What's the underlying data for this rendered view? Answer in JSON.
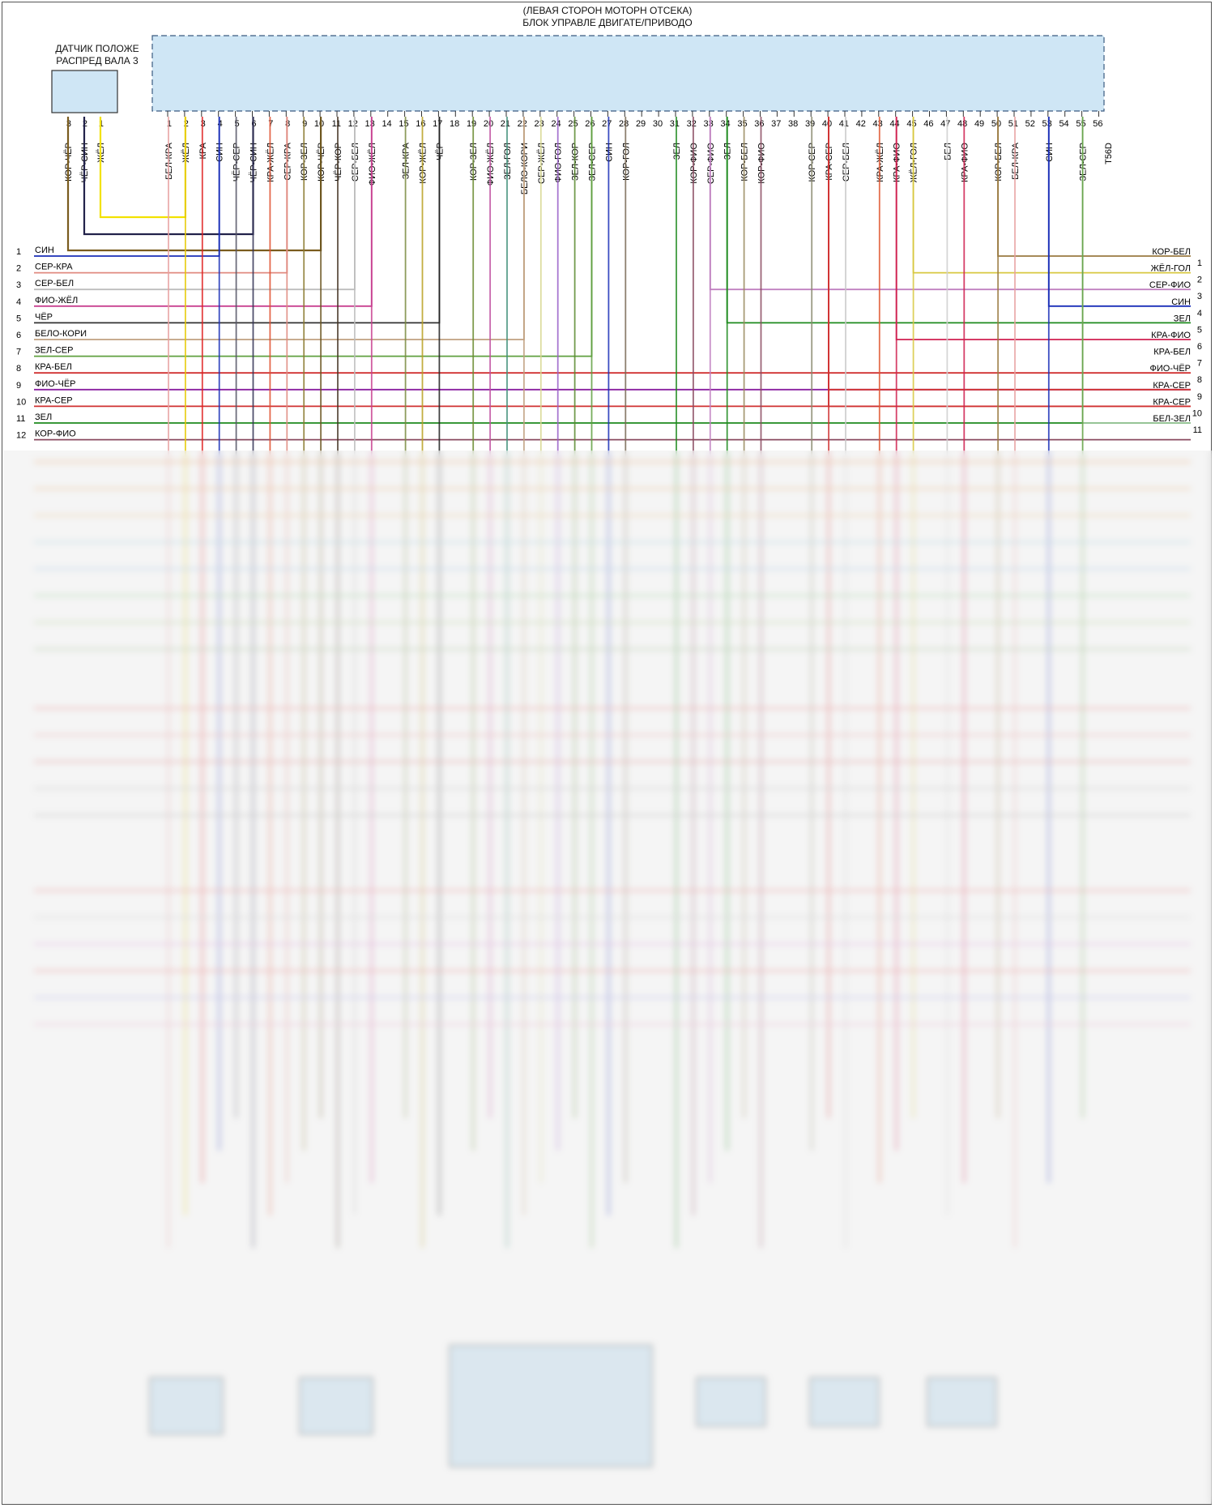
{
  "header": {
    "location": "(ЛЕВАЯ СТОРОН МОТОРН ОТСЕКА)",
    "unit": "БЛОК УПРАВЛЕ ДВИГАТЕ/ПРИВОДО"
  },
  "sensor": {
    "title_line1": "ДАТЧИК ПОЛОЖЕ",
    "title_line2": "РАСПРЕД ВАЛА 3",
    "pins": [
      {
        "num": "3",
        "wire": "КОР-ЧЁР",
        "color": "#7a5c1e"
      },
      {
        "num": "2",
        "wire": "ЧЁР-СИН",
        "color": "#22224a"
      },
      {
        "num": "1",
        "wire": "ЖЁЛ",
        "color": "#f2e200"
      }
    ]
  },
  "connector": {
    "code": "T56D",
    "pins": [
      {
        "num": "1",
        "wire": "БЕЛ-КРА",
        "color": "#e8a0a0"
      },
      {
        "num": "2",
        "wire": "ЖЁЛ",
        "color": "#e6c800"
      },
      {
        "num": "3",
        "wire": "КРА",
        "color": "#e02020"
      },
      {
        "num": "4",
        "wire": "СИН",
        "color": "#1a2fb8"
      },
      {
        "num": "5",
        "wire": "ЧЁР-СЕР",
        "color": "#555566"
      },
      {
        "num": "6",
        "wire": "ЧЁР-СИН",
        "color": "#333355"
      },
      {
        "num": "7",
        "wire": "КРА-ЖЁЛ",
        "color": "#e05030"
      },
      {
        "num": "8",
        "wire": "СЕР-КРА",
        "color": "#e08a80"
      },
      {
        "num": "9",
        "wire": "КОР-ЗЕЛ",
        "color": "#8a7a30"
      },
      {
        "num": "10",
        "wire": "КОР-ЧЁР",
        "color": "#6a5520"
      },
      {
        "num": "11",
        "wire": "ЧЁР-КОР",
        "color": "#443322"
      },
      {
        "num": "12",
        "wire": "СЕР-БЕЛ",
        "color": "#bdbdbd"
      },
      {
        "num": "13",
        "wire": "ФИО-ЖЁЛ",
        "color": "#c84090"
      },
      {
        "num": "14",
        "wire": "",
        "color": ""
      },
      {
        "num": "15",
        "wire": "ЗЕЛ-КРА",
        "color": "#7a8a40"
      },
      {
        "num": "16",
        "wire": "КОР-ЖЁЛ",
        "color": "#b8a020"
      },
      {
        "num": "17",
        "wire": "ЧЁР",
        "color": "#222222"
      },
      {
        "num": "18",
        "wire": "",
        "color": ""
      },
      {
        "num": "19",
        "wire": "КОР-ЗЕЛ",
        "color": "#6a8a30"
      },
      {
        "num": "20",
        "wire": "ФИО-ЖЁЛ",
        "color": "#c050a0"
      },
      {
        "num": "21",
        "wire": "ЗЕЛ-ГОЛ",
        "color": "#40907a"
      },
      {
        "num": "22",
        "wire": "БЕЛО-КОРИ",
        "color": "#c0a080"
      },
      {
        "num": "23",
        "wire": "СЕР-ЖЁЛ",
        "color": "#d8d890"
      },
      {
        "num": "24",
        "wire": "ФИО-ГОЛ",
        "color": "#9a60c8"
      },
      {
        "num": "25",
        "wire": "ЗЕЛ-КОР",
        "color": "#5a8a30"
      },
      {
        "num": "26",
        "wire": "ЗЕЛ-СЕР",
        "color": "#60a040"
      },
      {
        "num": "27",
        "wire": "СИН",
        "color": "#1a2fb8"
      },
      {
        "num": "28",
        "wire": "КОР-ГОЛ",
        "color": "#7a6a55"
      },
      {
        "num": "29",
        "wire": "",
        "color": ""
      },
      {
        "num": "30",
        "wire": "",
        "color": ""
      },
      {
        "num": "31",
        "wire": "ЗЕЛ",
        "color": "#1e8a1e"
      },
      {
        "num": "32",
        "wire": "КОР-ФИО",
        "color": "#8a4a60"
      },
      {
        "num": "33",
        "wire": "СЕР-ФИО",
        "color": "#c080c0"
      },
      {
        "num": "34",
        "wire": "ЗЕЛ",
        "color": "#1e8a1e"
      },
      {
        "num": "35",
        "wire": "КОР-БЕЛ",
        "color": "#9a8a60"
      },
      {
        "num": "36",
        "wire": "КОР-ФИО",
        "color": "#8a4a60"
      },
      {
        "num": "37",
        "wire": "",
        "color": ""
      },
      {
        "num": "38",
        "wire": "",
        "color": ""
      },
      {
        "num": "39",
        "wire": "КОР-СЕР",
        "color": "#8a8a70"
      },
      {
        "num": "40",
        "wire": "КРА-СЕР",
        "color": "#d03030"
      },
      {
        "num": "41",
        "wire": "СЕР-БЕЛ",
        "color": "#c8c8c8"
      },
      {
        "num": "42",
        "wire": "",
        "color": ""
      },
      {
        "num": "43",
        "wire": "КРА-ЖЁЛ",
        "color": "#e05530"
      },
      {
        "num": "44",
        "wire": "КРА-ФИО",
        "color": "#d02050"
      },
      {
        "num": "45",
        "wire": "ЖЁЛ-ГОЛ",
        "color": "#d8c840"
      },
      {
        "num": "46",
        "wire": "",
        "color": ""
      },
      {
        "num": "47",
        "wire": "БЕЛ",
        "color": "#d0d0d0"
      },
      {
        "num": "48",
        "wire": "КРА-ФИО",
        "color": "#d02050"
      },
      {
        "num": "49",
        "wire": "",
        "color": ""
      },
      {
        "num": "50",
        "wire": "КОР-БЕЛ",
        "color": "#9a7a40"
      },
      {
        "num": "51",
        "wire": "БЕЛ-КРА",
        "color": "#e8a0a0"
      },
      {
        "num": "52",
        "wire": "",
        "color": ""
      },
      {
        "num": "53",
        "wire": "СИН",
        "color": "#1a2fb8"
      },
      {
        "num": "54",
        "wire": "",
        "color": ""
      },
      {
        "num": "55",
        "wire": "ЗЕЛ-СЕР",
        "color": "#60a040"
      },
      {
        "num": "56",
        "wire": "",
        "color": ""
      }
    ]
  },
  "left_bus": [
    {
      "num": "1",
      "wire": "СИН",
      "color": "#1a2fb8"
    },
    {
      "num": "2",
      "wire": "СЕР-КРА",
      "color": "#e08a80"
    },
    {
      "num": "3",
      "wire": "СЕР-БЕЛ",
      "color": "#bdbdbd"
    },
    {
      "num": "4",
      "wire": "ФИО-ЖЁЛ",
      "color": "#c84090"
    },
    {
      "num": "5",
      "wire": "ЧЁР",
      "color": "#333333"
    },
    {
      "num": "6",
      "wire": "БЕЛО-КОРИ",
      "color": "#c0a080"
    },
    {
      "num": "7",
      "wire": "ЗЕЛ-СЕР",
      "color": "#60a040"
    },
    {
      "num": "8",
      "wire": "КРА-БЕЛ",
      "color": "#d03030"
    },
    {
      "num": "9",
      "wire": "ФИО-ЧЁР",
      "color": "#8a20a0"
    },
    {
      "num": "10",
      "wire": "КРА-СЕР",
      "color": "#d03030"
    },
    {
      "num": "11",
      "wire": "ЗЕЛ",
      "color": "#1e8a1e"
    },
    {
      "num": "12",
      "wire": "КОР-ФИО",
      "color": "#8a4a60"
    }
  ],
  "right_bus": [
    {
      "num": "1",
      "wire": "КОР-БЕЛ",
      "color": "#9a7a40"
    },
    {
      "num": "2",
      "wire": "ЖЁЛ-ГОЛ",
      "color": "#d8c840"
    },
    {
      "num": "3",
      "wire": "СЕР-ФИО",
      "color": "#c080c0"
    },
    {
      "num": "4",
      "wire": "СИН",
      "color": "#1a2fb8"
    },
    {
      "num": "5",
      "wire": "ЗЕЛ",
      "color": "#1e8a1e"
    },
    {
      "num": "6",
      "wire": "КРА-ФИО",
      "color": "#d02050"
    },
    {
      "num": "7",
      "wire": "КРА-БЕЛ",
      "color": "#d03030"
    },
    {
      "num": "8",
      "wire": "ФИО-ЧЁР",
      "color": "#8a20a0"
    },
    {
      "num": "9",
      "wire": "КРА-СЕР",
      "color": "#d03030"
    },
    {
      "num": "10",
      "wire": "КРА-СЕР",
      "color": "#d03030"
    },
    {
      "num": "11",
      "wire": "БЕЛ-ЗЕЛ",
      "color": "#a0c8a0"
    }
  ],
  "blurred_region": {
    "h_wire_colors": [
      "#f0a060",
      "#f0b070",
      "#f0c080",
      "#a0d0e0",
      "#a0c8e8",
      "#90d090",
      "#b0d090",
      "#a0c090",
      "#f08080",
      "#f0a0a0",
      "#e08080",
      "#c0c0c0",
      "#b0b0b0",
      "#f08080",
      "#d0d0d0",
      "#e0a0e0",
      "#f08080",
      "#b0b0f0",
      "#f0b0d0"
    ],
    "components": [
      "",
      "",
      "",
      "",
      "",
      ""
    ]
  },
  "colors": {
    "ecu_fill": "#cfe6f5",
    "ecu_border": "#3a5a80",
    "sensor_fill": "#cfe6f5"
  }
}
